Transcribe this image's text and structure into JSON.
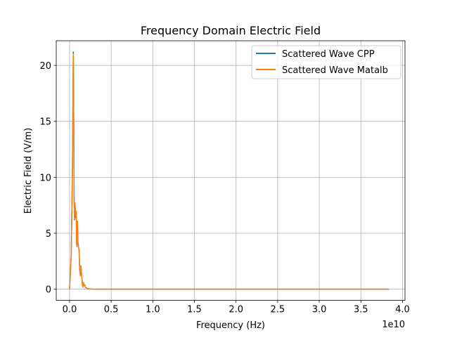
{
  "chart_data": {
    "type": "line",
    "title": "Frequency Domain Electric Field",
    "xlabel": "Frequency (Hz)",
    "ylabel": "Electric Field (V/m)",
    "x_offset_label": "1e10",
    "xlim": [
      -0.16,
      4.03
    ],
    "ylim": [
      -1.0,
      22.2
    ],
    "x_ticks": [
      0.0,
      0.5,
      1.0,
      1.5,
      2.0,
      2.5,
      3.0,
      3.5,
      4.0
    ],
    "x_tick_labels": [
      "0.0",
      "0.5",
      "1.0",
      "1.5",
      "2.0",
      "2.5",
      "3.0",
      "3.5",
      "4.0"
    ],
    "y_ticks": [
      0,
      5,
      10,
      15,
      20
    ],
    "y_tick_labels": [
      "0",
      "5",
      "10",
      "15",
      "20"
    ],
    "grid": true,
    "legend_position": "top-right",
    "series": [
      {
        "name": "Scattered Wave CPP",
        "color": "#1f77b4",
        "x": [
          0.0,
          0.02,
          0.035,
          0.045,
          0.05,
          0.055,
          0.06,
          0.065,
          0.07,
          0.075,
          0.08,
          0.085,
          0.09,
          0.095,
          0.1,
          0.105,
          0.11,
          0.115,
          0.12,
          0.125,
          0.13,
          0.135,
          0.14,
          0.145,
          0.15,
          0.155,
          0.16,
          0.165,
          0.17,
          0.175,
          0.18,
          0.185,
          0.19,
          0.195,
          0.2,
          0.21,
          0.22,
          0.23,
          0.24,
          0.25,
          0.27,
          0.3,
          0.35,
          0.5,
          1.0,
          2.0,
          3.0,
          3.84
        ],
        "y": [
          0.0,
          3.0,
          11.0,
          21.2,
          15.0,
          8.0,
          6.2,
          7.5,
          7.0,
          6.4,
          6.9,
          4.0,
          3.8,
          6.0,
          4.2,
          4.0,
          3.6,
          3.5,
          2.0,
          1.5,
          1.2,
          2.1,
          1.8,
          1.2,
          0.9,
          0.4,
          0.2,
          0.6,
          0.5,
          0.3,
          0.4,
          0.35,
          0.2,
          0.15,
          0.1,
          0.08,
          0.05,
          0.04,
          0.03,
          0.02,
          0.01,
          0.0,
          0.0,
          0.0,
          0.0,
          0.0,
          0.0,
          0.0
        ]
      },
      {
        "name": "Scattered Wave Matalb",
        "color": "#ff7f0e",
        "x": [
          0.0,
          0.02,
          0.035,
          0.045,
          0.05,
          0.055,
          0.06,
          0.065,
          0.07,
          0.075,
          0.08,
          0.085,
          0.09,
          0.095,
          0.1,
          0.105,
          0.11,
          0.115,
          0.12,
          0.125,
          0.13,
          0.135,
          0.14,
          0.145,
          0.15,
          0.155,
          0.16,
          0.165,
          0.17,
          0.175,
          0.18,
          0.185,
          0.19,
          0.195,
          0.2,
          0.21,
          0.22,
          0.23,
          0.24,
          0.25,
          0.27,
          0.3,
          0.35,
          0.5,
          1.0,
          2.0,
          3.0,
          3.84
        ],
        "y": [
          0.0,
          3.0,
          11.0,
          21.0,
          15.0,
          8.0,
          6.3,
          7.7,
          7.2,
          6.5,
          7.0,
          4.0,
          3.8,
          6.1,
          4.2,
          4.0,
          3.6,
          3.5,
          2.0,
          1.5,
          1.2,
          2.1,
          1.8,
          1.2,
          0.9,
          0.4,
          0.2,
          0.6,
          0.5,
          0.3,
          0.4,
          0.35,
          0.2,
          0.15,
          0.1,
          0.08,
          0.05,
          0.04,
          0.03,
          0.02,
          0.01,
          0.0,
          0.0,
          0.0,
          0.0,
          0.0,
          0.0,
          0.0
        ]
      }
    ]
  }
}
